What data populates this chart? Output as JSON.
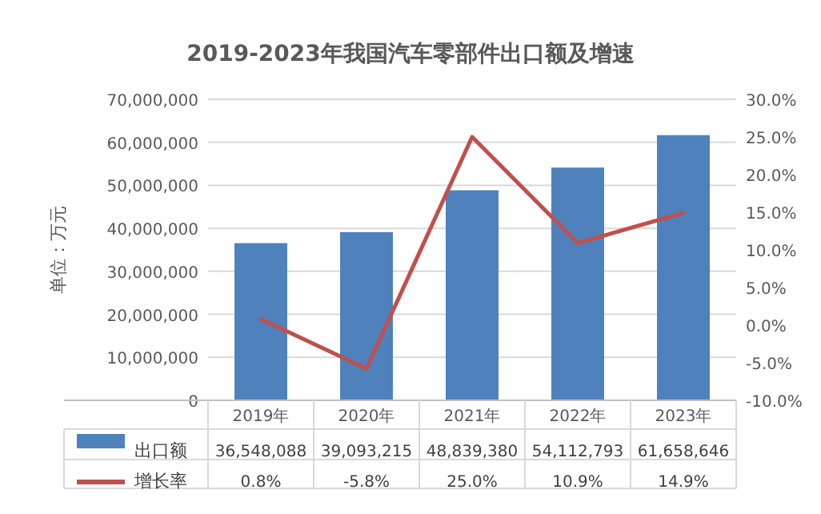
{
  "chart_data": {
    "type": "bar",
    "title": "2019-2023年我国汽车零部件出口额及增速",
    "ylabel": "单位：万元",
    "categories": [
      "2019年",
      "2020年",
      "2021年",
      "2022年",
      "2023年"
    ],
    "series": [
      {
        "name": "出口额",
        "color": "#4f81bd",
        "values": [
          36548088,
          39093215,
          48839380,
          54112793,
          61658646
        ],
        "value_labels": [
          "36,548,088",
          "39,093,215",
          "48,839,380",
          "54,112,793",
          "61,658,646"
        ]
      },
      {
        "name": "增长率",
        "type": "line",
        "axis": "y2",
        "color": "#c0504d",
        "values": [
          0.8,
          -5.8,
          25.0,
          10.9,
          14.9
        ],
        "value_labels": [
          "0.8%",
          "-5.8%",
          "25.0%",
          "10.9%",
          "14.9%"
        ]
      }
    ],
    "ylim": [
      0,
      70000000
    ],
    "yticks": [
      0,
      {
        "value": 10000000,
        "label": "10,000,000"
      },
      {
        "value": 20000000,
        "label": "20,000,000"
      },
      {
        "value": 30000000,
        "label": "30,000,000"
      },
      {
        "value": 40000000,
        "label": "40,000,000"
      },
      {
        "value": 50000000,
        "label": "50,000,000"
      },
      {
        "value": 60000000,
        "label": "60,000,000"
      },
      {
        "value": 70000000,
        "label": "70,000,000"
      }
    ],
    "y2lim": [
      -10,
      30
    ],
    "y2ticks": [
      {
        "value": -10,
        "label": "-10.0%"
      },
      {
        "value": -5,
        "label": "-5.0%"
      },
      {
        "value": 0,
        "label": "0.0%"
      },
      {
        "value": 5,
        "label": "5.0%"
      },
      {
        "value": 10,
        "label": "10.0%"
      },
      {
        "value": 15,
        "label": "15.0%"
      },
      {
        "value": 20,
        "label": "20.0%"
      },
      {
        "value": 25,
        "label": "25.0%"
      },
      {
        "value": 30,
        "label": "30.0%"
      }
    ],
    "grid": "y",
    "legend": "bottom",
    "marker": "none",
    "line_style": "solid"
  }
}
